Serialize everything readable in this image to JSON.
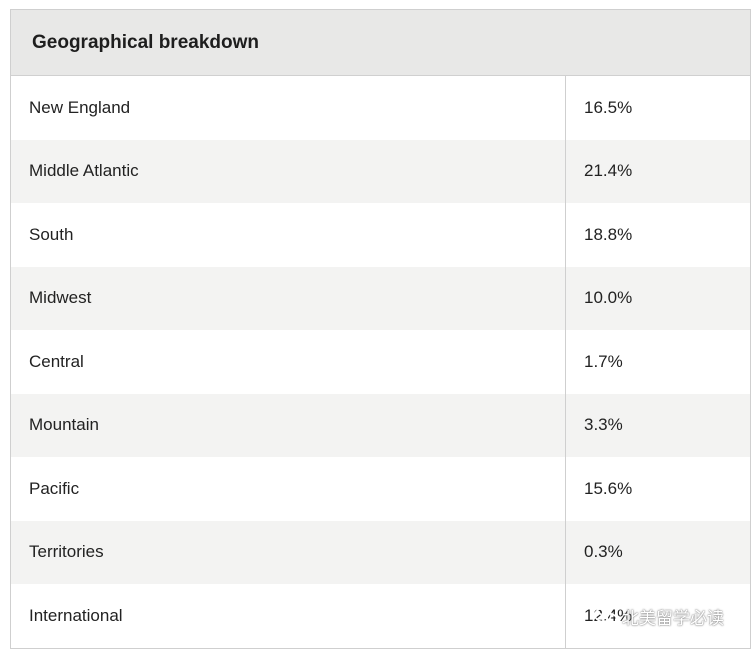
{
  "table": {
    "title": "Geographical breakdown",
    "rows": [
      {
        "region": "New England",
        "percent": "16.5%"
      },
      {
        "region": "Middle Atlantic",
        "percent": "21.4%"
      },
      {
        "region": "South",
        "percent": "18.8%"
      },
      {
        "region": "Midwest",
        "percent": "10.0%"
      },
      {
        "region": "Central",
        "percent": "1.7%"
      },
      {
        "region": "Mountain",
        "percent": "3.3%"
      },
      {
        "region": "Pacific",
        "percent": "15.6%"
      },
      {
        "region": "Territories",
        "percent": "0.3%"
      },
      {
        "region": "International",
        "percent": "12.4%"
      }
    ]
  },
  "watermark": {
    "text": "北美留学必读",
    "icon": "wechat-icon"
  }
}
